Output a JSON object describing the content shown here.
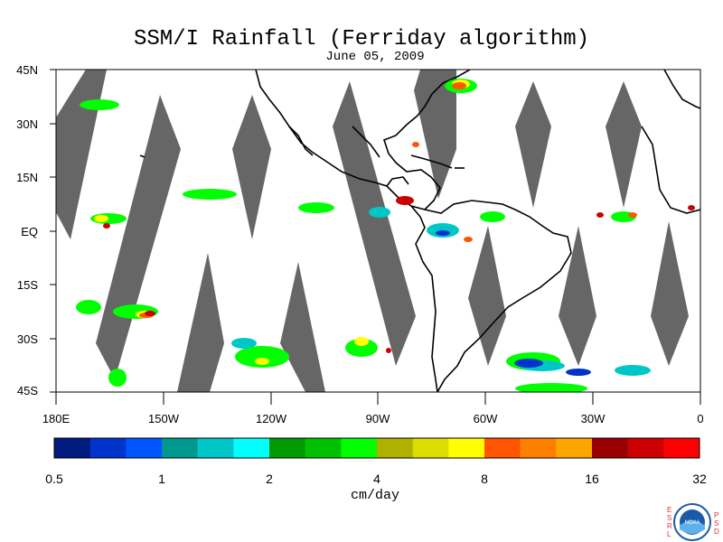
{
  "title": "SSM/I Rainfall (Ferriday algorithm)",
  "subtitle": "June 05, 2009",
  "lat_labels": [
    "45N",
    "30N",
    "15N",
    "EQ",
    "15S",
    "30S",
    "45S"
  ],
  "lon_labels": [
    "180E",
    "150W",
    "120W",
    "90W",
    "60W",
    "30W",
    "0"
  ],
  "colorbar": {
    "tick_labels": [
      "0.5",
      "1",
      "2",
      "4",
      "8",
      "16",
      "32"
    ],
    "units": "cm/day",
    "colors": [
      "#001a80",
      "#0033cc",
      "#0055ff",
      "#00998f",
      "#00c7c7",
      "#00ffff",
      "#009900",
      "#00c000",
      "#00ff00",
      "#b0b000",
      "#dddd00",
      "#ffff00",
      "#ff5500",
      "#ff8000",
      "#ffa500",
      "#990000",
      "#cc0000",
      "#ff0000"
    ]
  },
  "map": {
    "land_outline_color": "#000000",
    "swath_gap_color": "#666666",
    "background_color": "#ffffff"
  },
  "logo": {
    "left_text": "ESRL",
    "right_text": "PSD",
    "center_text": "NOAA"
  }
}
